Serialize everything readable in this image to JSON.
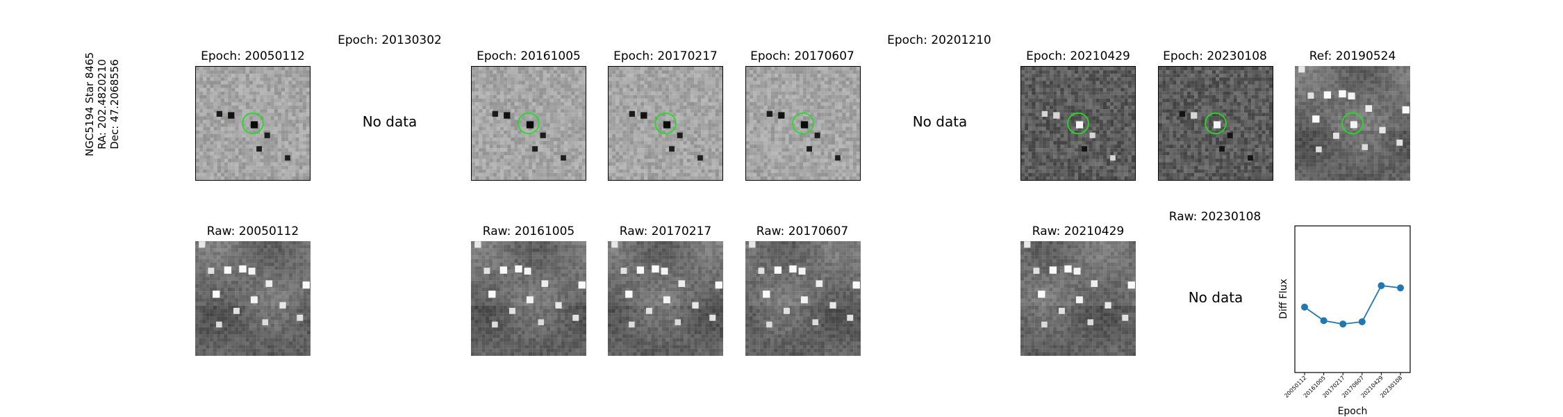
{
  "row_label": {
    "line1": "NGC5194 Star 8465",
    "line2": "RA: 202.4820210",
    "line3": "Dec: 47.2068556"
  },
  "no_data_text": "No data",
  "epoch_panels": [
    {
      "title": "Epoch: 20050112",
      "has_data": true,
      "tone": "light",
      "source_ring": "green"
    },
    {
      "title": "Epoch: 20130302",
      "has_data": false
    },
    {
      "title": "Epoch: 20161005",
      "has_data": true,
      "tone": "light",
      "source_ring": "green"
    },
    {
      "title": "Epoch: 20170217",
      "has_data": true,
      "tone": "light",
      "source_ring": "green"
    },
    {
      "title": "Epoch: 20170607",
      "has_data": true,
      "tone": "light",
      "source_ring": "green"
    },
    {
      "title": "Epoch: 20201210",
      "has_data": false
    },
    {
      "title": "Epoch: 20210429",
      "has_data": true,
      "tone": "dark",
      "source_ring": "green"
    },
    {
      "title": "Epoch: 20230108",
      "has_data": true,
      "tone": "dark",
      "source_ring": "green"
    },
    {
      "title": "Ref: 20190524",
      "has_data": true,
      "tone": "ref",
      "source_ring": "green"
    }
  ],
  "raw_panels": [
    {
      "title": "Raw: 20050112",
      "has_data": true
    },
    {
      "title": "Raw: 20161005",
      "has_data": true
    },
    {
      "title": "Raw: 20170217",
      "has_data": true
    },
    {
      "title": "Raw: 20170607",
      "has_data": true
    },
    {
      "title": "Raw: 20210429",
      "has_data": true
    },
    {
      "title": "Raw: 20230108",
      "has_data": false
    }
  ],
  "chart_data": {
    "type": "line",
    "xlabel": "Epoch",
    "ylabel": "Diff Flux",
    "categories": [
      "20050112",
      "20161005",
      "20170217",
      "20170607",
      "20210429",
      "20230108"
    ],
    "values": [
      0.58,
      0.46,
      0.43,
      0.45,
      0.77,
      0.75
    ],
    "ylim": [
      0,
      1.3
    ],
    "color": "#1f77b4",
    "grid": false,
    "y_ticks_visible": false
  }
}
